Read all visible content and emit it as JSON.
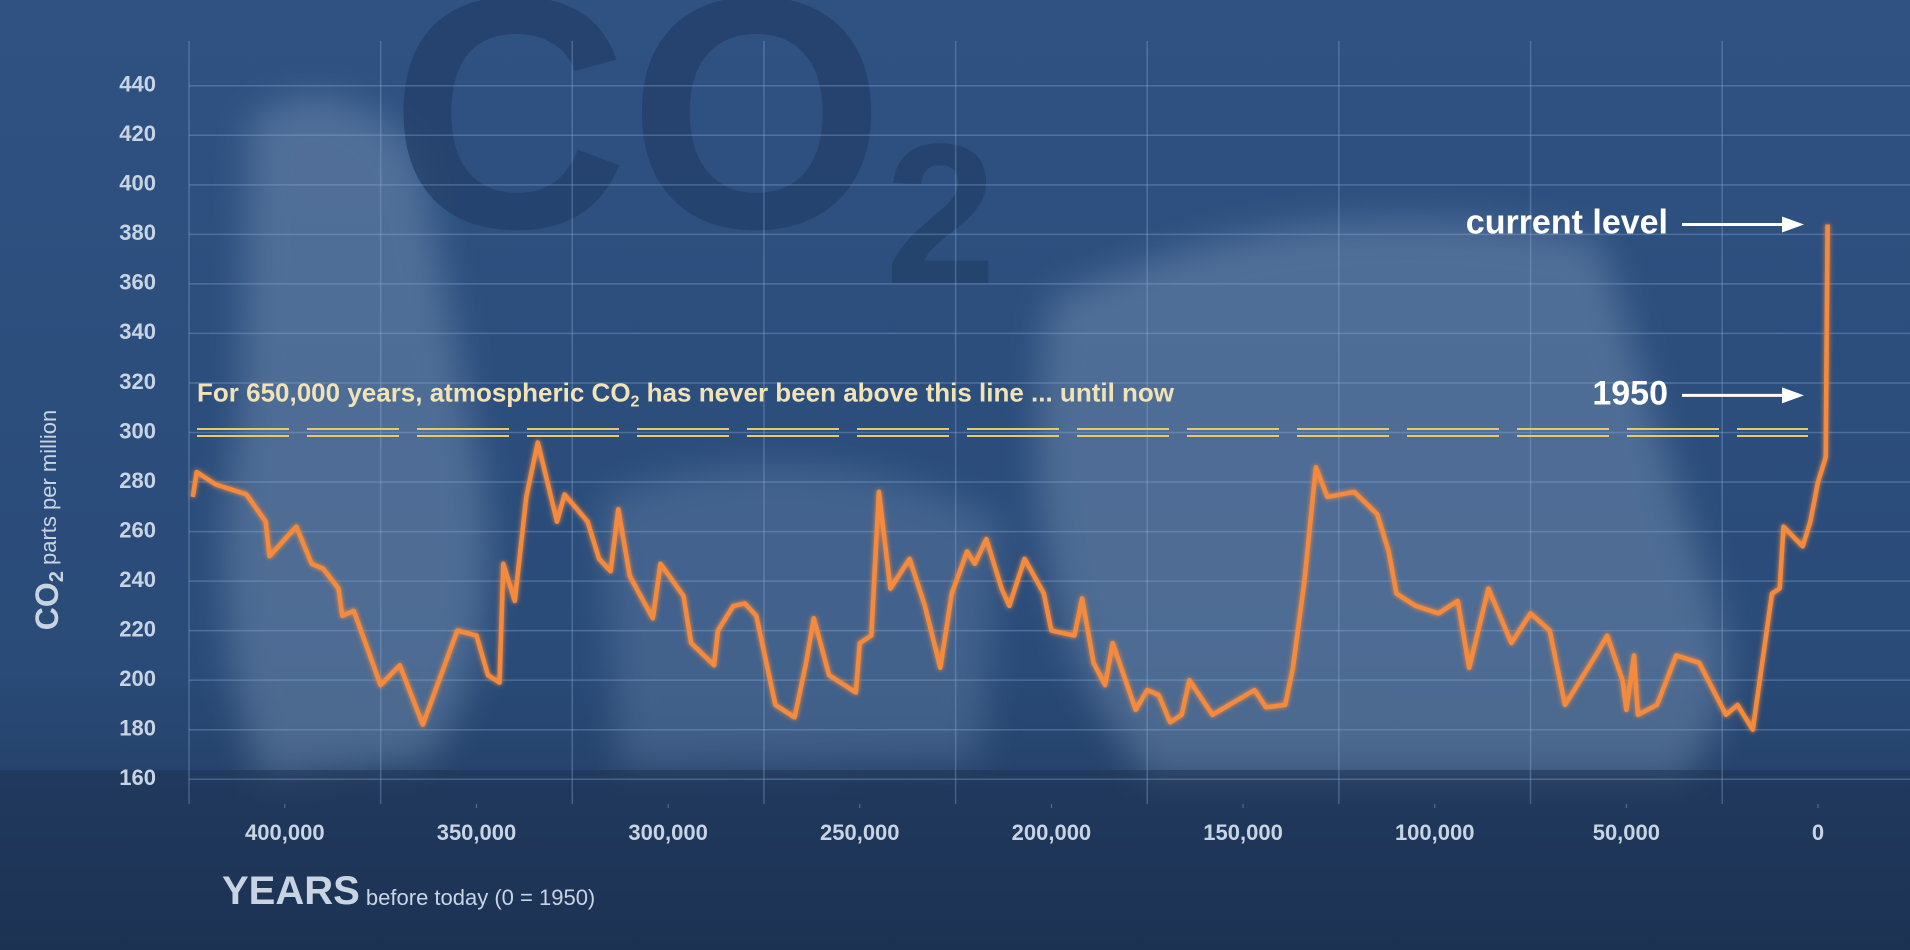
{
  "chart_data": {
    "type": "line",
    "title": {
      "main": "CO",
      "sub": "2"
    },
    "ylabel": {
      "main": "CO",
      "sub": "2",
      "rest": " parts per million"
    },
    "xlabel": {
      "main": "YEARS",
      "rest": " before today (0 = 1950)"
    },
    "xlim": [
      425000,
      -24000
    ],
    "ylim": [
      150,
      450
    ],
    "xticks": [
      {
        "value": 400000,
        "label": "400,000"
      },
      {
        "value": 350000,
        "label": "350,000"
      },
      {
        "value": 300000,
        "label": "300,000"
      },
      {
        "value": 250000,
        "label": "250,000"
      },
      {
        "value": 200000,
        "label": "200,000"
      },
      {
        "value": 150000,
        "label": "150,000"
      },
      {
        "value": 100000,
        "label": "100,000"
      },
      {
        "value": 50000,
        "label": "50,000"
      },
      0
    ],
    "xgrid": [
      425000,
      375000,
      325000,
      275000,
      225000,
      175000,
      125000,
      75000,
      25000
    ],
    "yticks": [
      160,
      180,
      200,
      220,
      240,
      260,
      280,
      300,
      320,
      340,
      360,
      380,
      400,
      420,
      440
    ],
    "grid": true,
    "series": [
      {
        "color": "#f48a3c",
        "x": [
          424000,
          423000,
          418000,
          410000,
          405000,
          404000,
          397000,
          393000,
          390000,
          386000,
          385000,
          382000,
          375000,
          370000,
          364000,
          355000,
          350000,
          347000,
          344000,
          343000,
          340000,
          337000,
          334000,
          329000,
          327000,
          321000,
          318000,
          315000,
          313000,
          310000,
          304000,
          302000,
          296000,
          294000,
          288000,
          287000,
          283000,
          280000,
          277000,
          272000,
          267000,
          264000,
          262000,
          258000,
          251000,
          250000,
          247000,
          245000,
          242000,
          237000,
          233000,
          229000,
          226000,
          222000,
          220000,
          217000,
          213000,
          211000,
          207000,
          202000,
          200000,
          194000,
          192000,
          189000,
          186000,
          184000,
          178000,
          175000,
          172000,
          169000,
          166000,
          164000,
          158000,
          147000,
          144000,
          139000,
          137000,
          134000,
          131000,
          128000,
          121000,
          115000,
          112000,
          110000,
          105000,
          99000,
          94000,
          91000,
          86000,
          80000,
          75000,
          70000,
          66000,
          58000,
          55000,
          51000,
          50000,
          48000,
          47000,
          42000,
          37000,
          31000,
          24000,
          21000,
          17000,
          12000,
          10000,
          9000,
          4000,
          2000,
          0,
          -2000,
          -2500
        ],
        "values": [
          274,
          284,
          279,
          275,
          264,
          250,
          262,
          247,
          245,
          237,
          226,
          228,
          198,
          206,
          182,
          220,
          218,
          202,
          199,
          247,
          232,
          274,
          296,
          264,
          275,
          264,
          249,
          244,
          269,
          242,
          225,
          247,
          234,
          215,
          206,
          220,
          230,
          231,
          226,
          190,
          185,
          207,
          225,
          202,
          195,
          215,
          218,
          276,
          237,
          249,
          230,
          205,
          235,
          252,
          247,
          257,
          237,
          230,
          249,
          235,
          220,
          218,
          233,
          207,
          198,
          215,
          188,
          196,
          194,
          183,
          186,
          200,
          186,
          196,
          189,
          190,
          205,
          240,
          286,
          274,
          276,
          267,
          252,
          235,
          230,
          227,
          232,
          205,
          237,
          215,
          227,
          220,
          190,
          210,
          218,
          200,
          188,
          210,
          186,
          190,
          210,
          207,
          186,
          190,
          180,
          235,
          237,
          262,
          254,
          264,
          280,
          290,
          384
        ]
      }
    ],
    "threshold": {
      "value": 300,
      "color": "#e8c96a",
      "label": [
        "For 650,000 years, atmospheric CO",
        "2",
        " has never been above this line ... until now"
      ]
    },
    "annotations": [
      {
        "text": "current level",
        "y": 384
      },
      {
        "text": "1950",
        "y": 315
      }
    ]
  }
}
